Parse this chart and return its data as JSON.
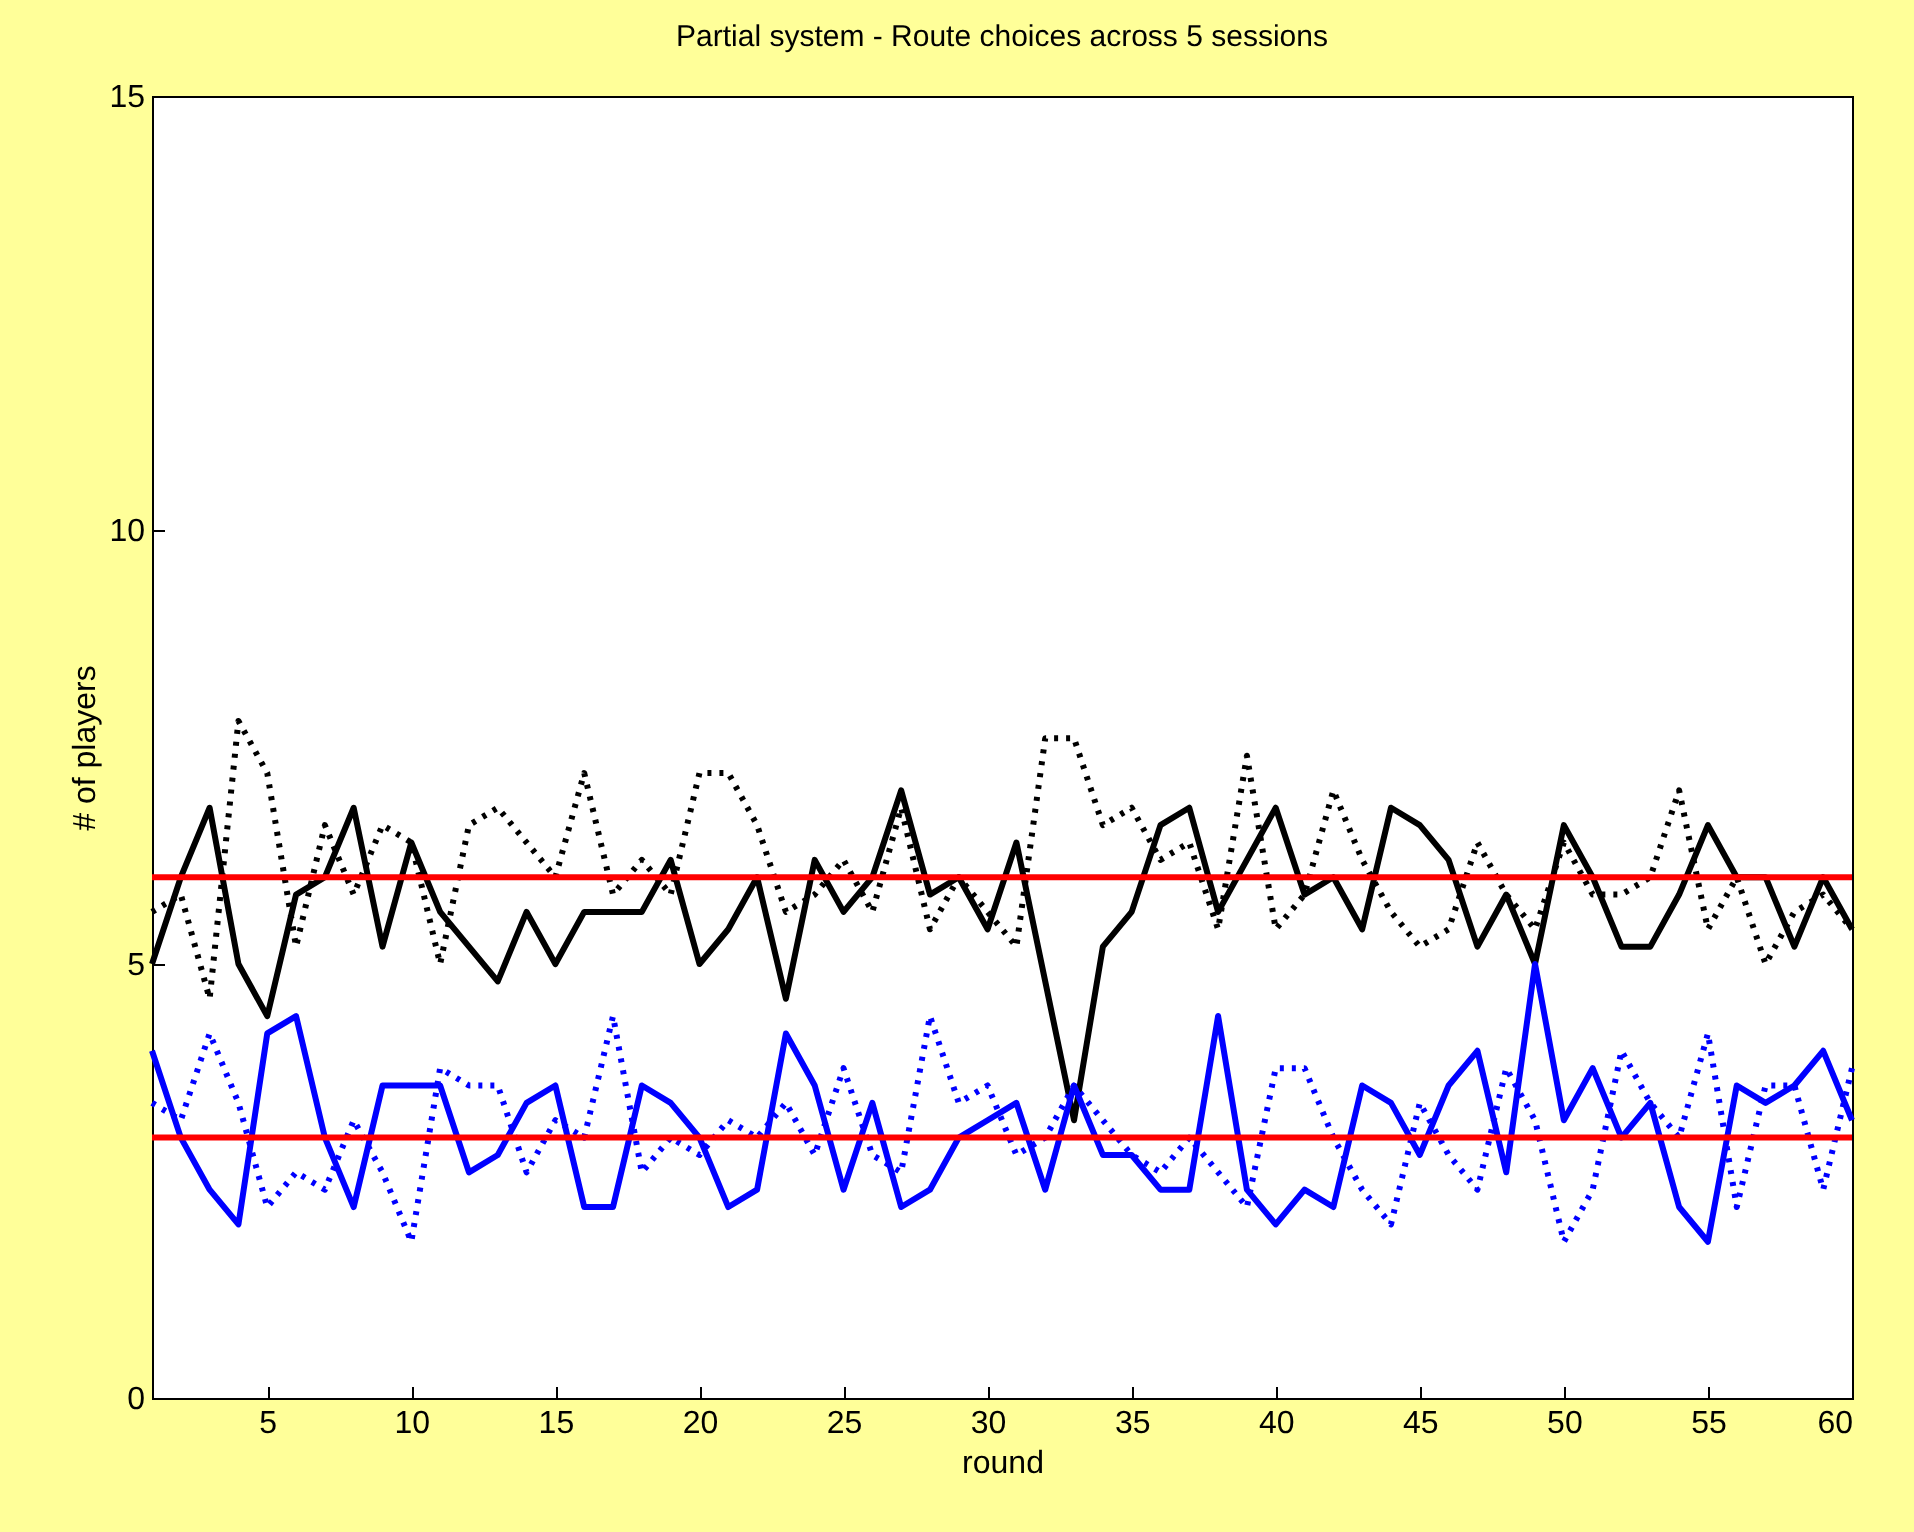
{
  "chart_data": {
    "type": "line",
    "title": "Partial system - Route choices across 5 sessions",
    "xlabel": "round",
    "ylabel": "# of players",
    "x": [
      1,
      2,
      3,
      4,
      5,
      6,
      7,
      8,
      9,
      10,
      11,
      12,
      13,
      14,
      15,
      16,
      17,
      18,
      19,
      20,
      21,
      22,
      23,
      24,
      25,
      26,
      27,
      28,
      29,
      30,
      31,
      32,
      33,
      34,
      35,
      36,
      37,
      38,
      39,
      40,
      41,
      42,
      43,
      44,
      45,
      46,
      47,
      48,
      49,
      50,
      51,
      52,
      53,
      54,
      55,
      56,
      57,
      58,
      59,
      60
    ],
    "series": [
      {
        "color": "#000000",
        "line_style": "solid",
        "values": [
          5.0,
          6.0,
          6.8,
          5.0,
          4.4,
          5.8,
          6.0,
          6.8,
          5.2,
          6.4,
          5.6,
          5.2,
          4.8,
          5.6,
          5.0,
          5.6,
          5.6,
          5.6,
          6.2,
          5.0,
          5.4,
          6.0,
          4.6,
          6.2,
          5.6,
          6.0,
          7.0,
          5.8,
          6.0,
          5.4,
          6.4,
          4.8,
          3.2,
          5.2,
          5.6,
          6.6,
          6.8,
          5.6,
          6.2,
          6.8,
          5.8,
          6.0,
          5.4,
          6.8,
          6.6,
          6.2,
          5.2,
          5.8,
          5.0,
          6.6,
          6.0,
          5.2,
          5.2,
          5.8,
          6.6,
          6.0,
          6.0,
          5.2,
          6.0,
          5.4
        ]
      },
      {
        "color": "#000000",
        "line_style": "dotted",
        "values": [
          5.6,
          5.8,
          4.6,
          7.8,
          7.2,
          5.2,
          6.6,
          5.8,
          6.6,
          6.4,
          5.0,
          6.6,
          6.8,
          6.4,
          6.0,
          7.2,
          5.8,
          6.2,
          5.8,
          7.2,
          7.2,
          6.6,
          5.6,
          5.8,
          6.2,
          5.6,
          6.8,
          5.4,
          6.0,
          5.6,
          5.2,
          7.6,
          7.6,
          6.6,
          6.8,
          6.2,
          6.4,
          5.4,
          7.4,
          5.4,
          5.8,
          7.0,
          6.2,
          5.6,
          5.2,
          5.4,
          6.4,
          5.8,
          5.4,
          6.4,
          5.8,
          5.8,
          6.0,
          7.0,
          5.4,
          6.0,
          5.0,
          5.6,
          5.8,
          5.4
        ]
      },
      {
        "color": "#0000ff",
        "line_style": "solid",
        "values": [
          4.0,
          3.0,
          2.4,
          2.0,
          4.2,
          4.4,
          3.0,
          2.2,
          3.6,
          3.6,
          3.6,
          2.6,
          2.8,
          3.4,
          3.6,
          2.2,
          2.2,
          3.6,
          3.4,
          3.0,
          2.2,
          2.4,
          4.2,
          3.6,
          2.4,
          3.4,
          2.2,
          2.4,
          3.0,
          3.2,
          3.4,
          2.4,
          3.6,
          2.8,
          2.8,
          2.4,
          2.4,
          4.4,
          2.4,
          2.0,
          2.4,
          2.2,
          3.6,
          3.4,
          2.8,
          3.6,
          4.0,
          2.6,
          5.0,
          3.2,
          3.8,
          3.0,
          3.4,
          2.2,
          1.8,
          3.6,
          3.4,
          3.6,
          4.0,
          3.2
        ]
      },
      {
        "color": "#0000ff",
        "line_style": "dotted",
        "values": [
          3.4,
          3.2,
          4.2,
          3.4,
          2.2,
          2.6,
          2.4,
          3.2,
          2.6,
          1.8,
          3.8,
          3.6,
          3.6,
          2.6,
          3.2,
          3.0,
          4.4,
          2.6,
          3.0,
          2.8,
          3.2,
          3.0,
          3.4,
          2.8,
          3.8,
          2.8,
          2.6,
          4.4,
          3.4,
          3.6,
          2.8,
          3.0,
          3.6,
          3.2,
          2.8,
          2.6,
          3.0,
          2.6,
          2.2,
          3.8,
          3.8,
          3.0,
          2.4,
          2.0,
          3.4,
          2.8,
          2.4,
          3.8,
          3.2,
          1.8,
          2.4,
          4.0,
          3.4,
          3.0,
          4.2,
          2.2,
          3.6,
          3.6,
          2.4,
          3.8
        ]
      }
    ],
    "ref_lines": [
      {
        "axis": "y",
        "value": 6,
        "color": "#ff0000"
      },
      {
        "axis": "y",
        "value": 3,
        "color": "#ff0000"
      }
    ],
    "xlim": [
      1,
      60
    ],
    "xticks": [
      5,
      10,
      15,
      20,
      25,
      30,
      35,
      40,
      45,
      50,
      55,
      60
    ],
    "ylim": [
      0,
      15
    ],
    "yticks": [
      0,
      5,
      10,
      15
    ]
  }
}
